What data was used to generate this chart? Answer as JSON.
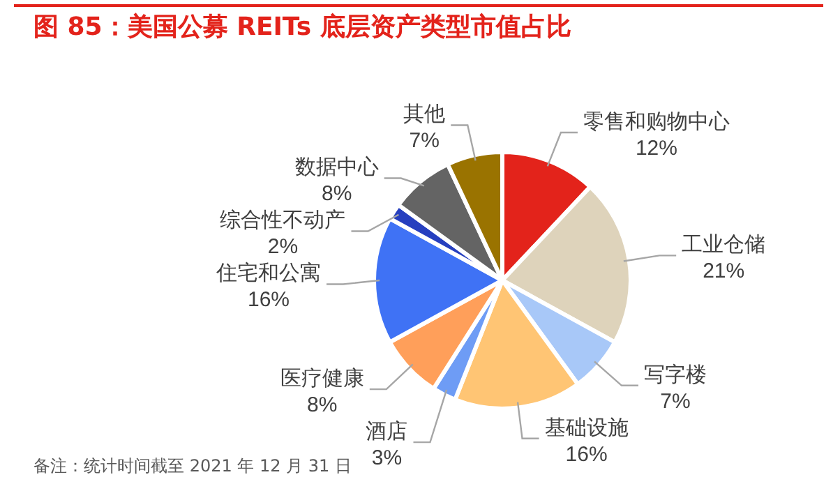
{
  "chart_data": {
    "type": "pie",
    "title": "图 85：美国公募 REITs 底层资产类型市值占比",
    "categories": [
      "零售和购物中心",
      "工业仓储",
      "写字楼",
      "基础设施",
      "酒店",
      "医疗健康",
      "住宅和公寓",
      "综合性不动产",
      "数据中心",
      "其他"
    ],
    "values": [
      12,
      21,
      7,
      16,
      3,
      8,
      16,
      2,
      8,
      7
    ],
    "colors": [
      "#e3231b",
      "#ded3bb",
      "#a8c8f8",
      "#ffc574",
      "#6e9cf5",
      "#ff9f5a",
      "#3f72f5",
      "#263fbf",
      "#646464",
      "#9a7300"
    ],
    "value_labels": [
      "12%",
      "21%",
      "7%",
      "16%",
      "3%",
      "8%",
      "16%",
      "2%",
      "8%",
      "7%"
    ],
    "legend": false,
    "annotations": [
      "备注：统计时间截至 2021 年 12 月 31 日"
    ]
  }
}
